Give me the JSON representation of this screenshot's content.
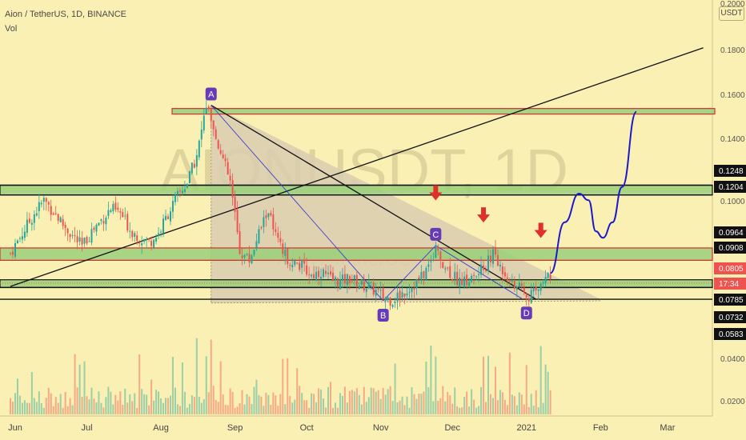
{
  "header": {
    "symbol_line": "Aion / TetherUS, 1D, BINANCE",
    "indicator": "Vol",
    "currency_button": "USDT"
  },
  "watermark": {
    "big": "AIONUSDT, 1D",
    "small": "Aion / TetherUS"
  },
  "colors": {
    "background": "#fbf0b3",
    "up_candle": "#26a69a",
    "down_candle": "#ef5350",
    "zone_fill": "#9ad07a",
    "zone_border_red": "#d32f2f",
    "projection": "#1a1acd",
    "arrow": "#e0302a",
    "marker": "#673ab7",
    "triangle_fill": "#d9cdb0"
  },
  "chart_data": {
    "type": "candlestick",
    "title": "Aion / TetherUS, 1D, BINANCE",
    "x_tick_labels": [
      "Jun",
      "Jul",
      "Aug",
      "Sep",
      "Oct",
      "Nov",
      "Dec",
      "2021",
      "Feb",
      "Mar"
    ],
    "y_tick_labels": [
      "0.2000",
      "0.1800",
      "0.1600",
      "0.1400",
      "0.1000",
      "0.0400",
      "0.0200"
    ],
    "ylim": [
      0.012,
      0.205
    ],
    "price_labels": [
      {
        "text": "USDT",
        "style": "plain"
      },
      {
        "text": "0.1248",
        "style": "black"
      },
      {
        "text": "0.1204",
        "style": "black"
      },
      {
        "text": "0.0964",
        "style": "black"
      },
      {
        "text": "0.0908",
        "style": "black"
      },
      {
        "text": "0.0805",
        "style": "red"
      },
      {
        "text": "17:34",
        "style": "red"
      },
      {
        "text": "0.0785",
        "style": "black"
      },
      {
        "text": "0.0732",
        "style": "black"
      },
      {
        "text": "0.0583",
        "style": "black"
      }
    ],
    "horizontal_levels": [
      0.1248,
      0.1204,
      0.0964,
      0.0908,
      0.0785,
      0.0732
    ],
    "zones": [
      {
        "from": 0.157,
        "to": 0.1595,
        "border": "red",
        "span": "from-aug"
      },
      {
        "from": 0.1204,
        "to": 0.1248,
        "border": "black",
        "span": "full"
      },
      {
        "from": 0.0908,
        "to": 0.0964,
        "border": "red",
        "span": "full"
      },
      {
        "from": 0.0785,
        "to": 0.082,
        "border": "black",
        "span": "full"
      }
    ],
    "markers": [
      {
        "label": "A",
        "date": "Aug 21",
        "price": 0.161
      },
      {
        "label": "B",
        "date": "Nov 4",
        "price": 0.0725
      },
      {
        "label": "C",
        "date": "Nov 26",
        "price": 0.0975
      },
      {
        "label": "D",
        "date": "Dec 30",
        "price": 0.0735
      }
    ],
    "series": [
      {
        "name": "price",
        "points": [
          [
            0,
            0.094
          ],
          [
            5,
            0.103
          ],
          [
            10,
            0.112
          ],
          [
            14,
            0.118
          ],
          [
            18,
            0.113
          ],
          [
            22,
            0.107
          ],
          [
            26,
            0.102
          ],
          [
            30,
            0.097
          ],
          [
            34,
            0.104
          ],
          [
            38,
            0.109
          ],
          [
            42,
            0.114
          ],
          [
            46,
            0.112
          ],
          [
            50,
            0.105
          ],
          [
            54,
            0.101
          ],
          [
            58,
            0.099
          ],
          [
            62,
            0.103
          ],
          [
            66,
            0.112
          ],
          [
            70,
            0.12
          ],
          [
            74,
            0.126
          ],
          [
            78,
            0.138
          ],
          [
            82,
            0.161
          ],
          [
            84,
            0.152
          ],
          [
            88,
            0.14
          ],
          [
            92,
            0.126
          ],
          [
            96,
            0.095
          ],
          [
            100,
            0.091
          ],
          [
            104,
            0.103
          ],
          [
            108,
            0.114
          ],
          [
            110,
            0.104
          ],
          [
            114,
            0.094
          ],
          [
            118,
            0.09
          ],
          [
            122,
            0.088
          ],
          [
            126,
            0.084
          ],
          [
            130,
            0.086
          ],
          [
            134,
            0.082
          ],
          [
            138,
            0.081
          ],
          [
            142,
            0.083
          ],
          [
            146,
            0.08
          ],
          [
            150,
            0.079
          ],
          [
            154,
            0.076
          ],
          [
            156,
            0.074
          ],
          [
            160,
            0.073
          ],
          [
            164,
            0.076
          ],
          [
            168,
            0.079
          ],
          [
            172,
            0.083
          ],
          [
            176,
            0.09
          ],
          [
            178,
            0.097
          ],
          [
            182,
            0.088
          ],
          [
            186,
            0.083
          ],
          [
            190,
            0.081
          ],
          [
            194,
            0.083
          ],
          [
            198,
            0.087
          ],
          [
            202,
            0.094
          ],
          [
            204,
            0.089
          ],
          [
            208,
            0.084
          ],
          [
            212,
            0.079
          ],
          [
            216,
            0.075
          ],
          [
            220,
            0.076
          ],
          [
            222,
            0.08
          ],
          [
            226,
            0.085
          ]
        ]
      },
      {
        "name": "projection",
        "points": [
          [
            226,
            0.085
          ],
          [
            232,
            0.108
          ],
          [
            238,
            0.121
          ],
          [
            242,
            0.118
          ],
          [
            245,
            0.104
          ],
          [
            248,
            0.101
          ],
          [
            252,
            0.108
          ],
          [
            256,
            0.124
          ],
          [
            262,
            0.158
          ]
        ]
      }
    ],
    "trendlines": [
      {
        "from": [
          84,
          0.161
        ],
        "to": [
          220,
          0.0732
        ]
      },
      {
        "from": [
          0,
          0.079
        ],
        "to": [
          290,
          0.187
        ]
      },
      {
        "from": [
          84,
          0.161
        ],
        "to": [
          156,
          0.0725
        ]
      },
      {
        "from": [
          156,
          0.0725
        ],
        "to": [
          178,
          0.0975
        ]
      },
      {
        "from": [
          178,
          0.0975
        ],
        "to": [
          214,
          0.0735
        ]
      }
    ],
    "arrows_at": [
      178,
      198,
      222
    ]
  }
}
